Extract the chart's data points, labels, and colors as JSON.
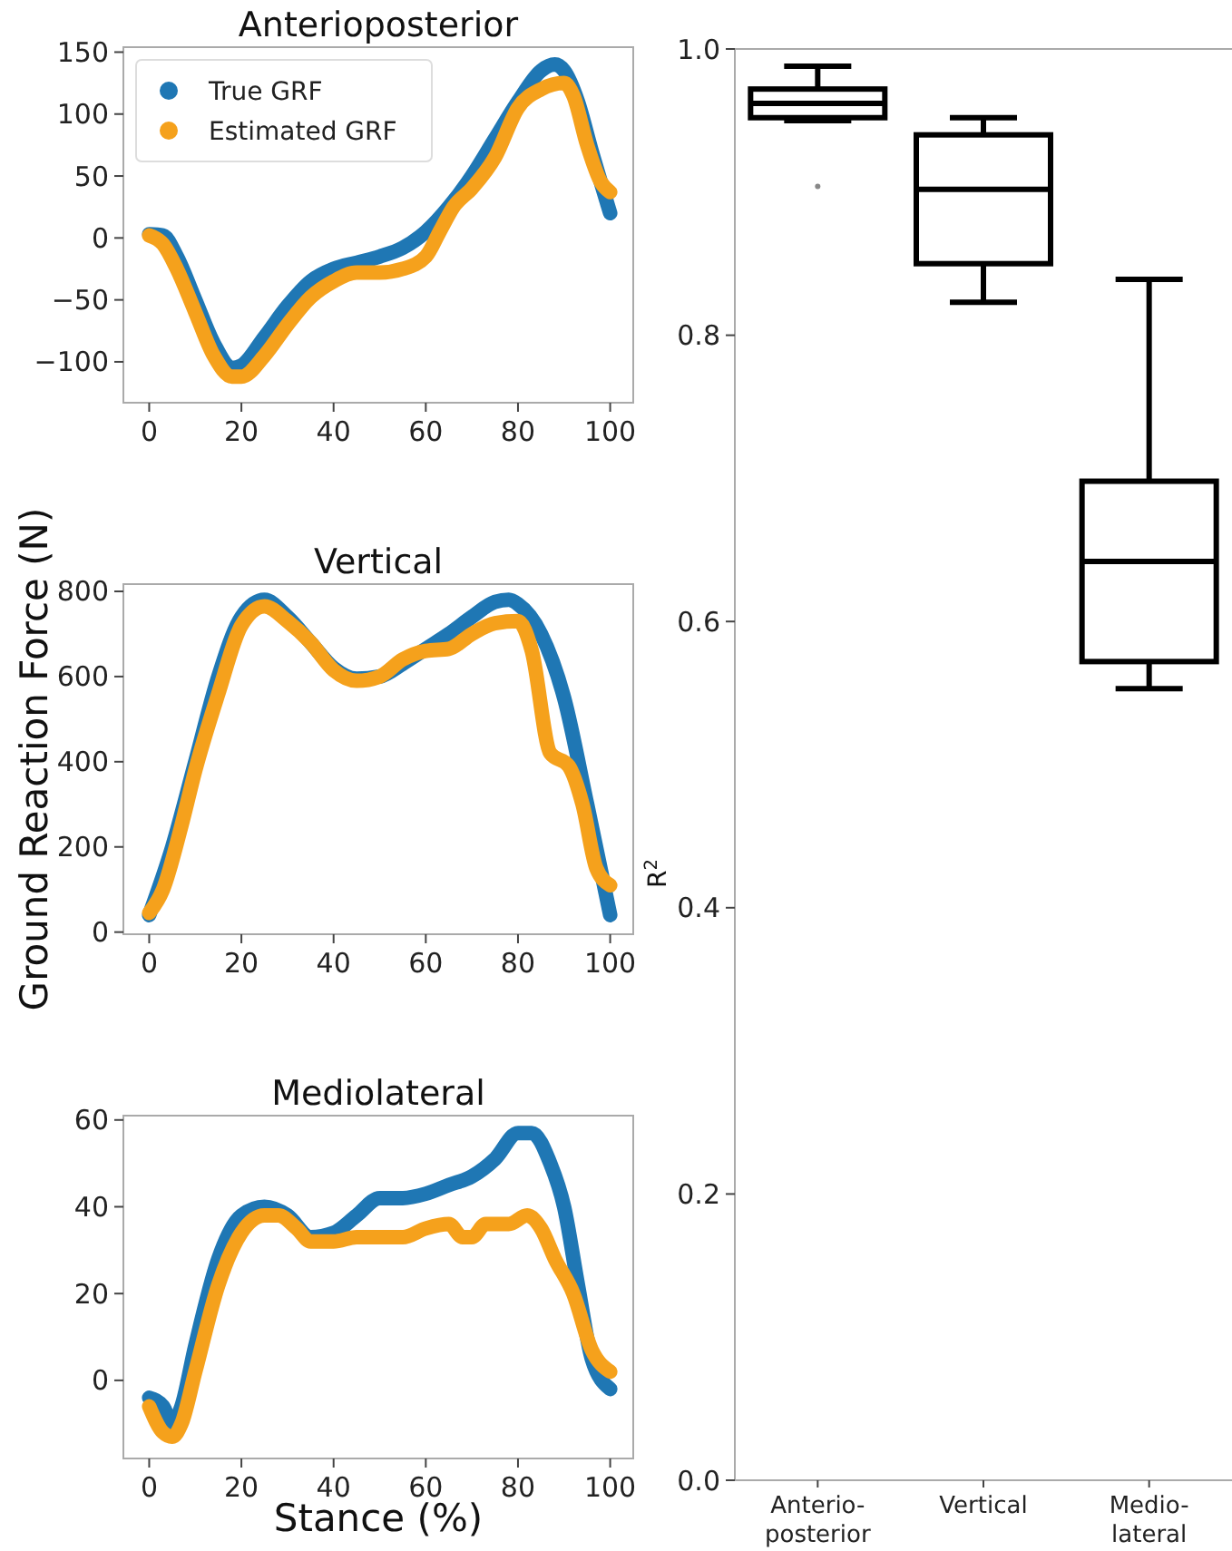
{
  "chart_data": [
    {
      "type": "line",
      "title": "Anterioposterior",
      "xlim": [
        -5.6,
        105
      ],
      "xticks": [
        0,
        20,
        40,
        60,
        80,
        100
      ],
      "ylim": [
        -133,
        154
      ],
      "yticks": [
        {
          "value": -100,
          "label": "−100"
        },
        {
          "value": -50,
          "label": "−50"
        },
        0,
        50,
        100,
        150
      ],
      "legend": "top left",
      "line_style": "solid",
      "series": [
        {
          "name": "True GRF",
          "color": "#1f77b4",
          "x": [
            0,
            3,
            6,
            10,
            14,
            18,
            20,
            25,
            30,
            35,
            40,
            45,
            50,
            55,
            60,
            65,
            70,
            75,
            80,
            85,
            88,
            90,
            93,
            96,
            100
          ],
          "values": [
            3,
            2,
            -15,
            -50,
            -85,
            -105,
            -103,
            -80,
            -55,
            -35,
            -25,
            -20,
            -15,
            -8,
            5,
            25,
            50,
            80,
            110,
            135,
            140,
            135,
            110,
            70,
            20
          ]
        },
        {
          "name": "Estimated GRF",
          "color": "#f5a11c",
          "x": [
            0,
            3,
            6,
            10,
            14,
            18,
            20,
            25,
            30,
            35,
            40,
            45,
            50,
            55,
            60,
            63,
            66,
            70,
            75,
            80,
            85,
            90,
            92,
            95,
            98,
            100
          ],
          "values": [
            2,
            -5,
            -25,
            -60,
            -95,
            -112,
            -112,
            -95,
            -70,
            -48,
            -35,
            -28,
            -28,
            -25,
            -15,
            5,
            25,
            40,
            65,
            105,
            120,
            125,
            115,
            75,
            45,
            37
          ]
        }
      ]
    },
    {
      "type": "line",
      "title": "Vertical",
      "ylabel": "Ground Reaction Force (N)",
      "xlim": [
        -5.6,
        105
      ],
      "xticks": [
        0,
        20,
        40,
        60,
        80,
        100
      ],
      "ylim": [
        -5,
        817
      ],
      "yticks": [
        0,
        200,
        400,
        600,
        800
      ],
      "line_style": "solid",
      "series": [
        {
          "color": "#1f77b4",
          "x": [
            0,
            5,
            10,
            15,
            20,
            25,
            30,
            35,
            40,
            45,
            50,
            55,
            60,
            65,
            70,
            75,
            78,
            80,
            85,
            90,
            95,
            100
          ],
          "values": [
            40,
            200,
            400,
            600,
            740,
            780,
            740,
            680,
            620,
            595,
            600,
            630,
            665,
            700,
            740,
            775,
            780,
            770,
            700,
            550,
            300,
            40
          ]
        },
        {
          "color": "#f5a11c",
          "x": [
            0,
            3,
            7,
            10,
            15,
            20,
            25,
            30,
            35,
            40,
            45,
            50,
            55,
            60,
            65,
            70,
            75,
            80,
            83,
            87,
            91,
            94,
            97,
            100
          ],
          "values": [
            45,
            100,
            250,
            380,
            560,
            720,
            765,
            730,
            680,
            615,
            590,
            600,
            640,
            660,
            665,
            700,
            725,
            730,
            660,
            420,
            390,
            300,
            150,
            110
          ]
        }
      ]
    },
    {
      "type": "line",
      "title": "Mediolateral",
      "xlabel": "Stance (%)",
      "xlim": [
        -5.6,
        105
      ],
      "xticks": [
        0,
        20,
        40,
        60,
        80,
        100
      ],
      "ylim": [
        -18,
        61
      ],
      "yticks": [
        0,
        20,
        40,
        60
      ],
      "line_style": "solid",
      "series": [
        {
          "color": "#1f77b4",
          "x": [
            0,
            3,
            5,
            7,
            10,
            15,
            20,
            25,
            30,
            35,
            40,
            45,
            50,
            55,
            60,
            65,
            70,
            75,
            80,
            83,
            87,
            90,
            93,
            96,
            100
          ],
          "values": [
            -4,
            -6,
            -10,
            -6,
            8,
            28,
            38,
            40,
            38,
            33,
            34,
            38,
            42,
            42,
            43,
            45,
            47,
            51,
            57,
            57,
            50,
            40,
            22,
            5,
            -2
          ]
        },
        {
          "color": "#f5a11c",
          "x": [
            0,
            3,
            5,
            7,
            10,
            15,
            20,
            25,
            28,
            32,
            35,
            40,
            45,
            50,
            55,
            60,
            65,
            68,
            70,
            73,
            78,
            82,
            85,
            88,
            92,
            96,
            100
          ],
          "values": [
            -6,
            -12,
            -13,
            -10,
            2,
            22,
            34,
            38,
            38,
            35,
            32,
            32,
            33,
            33,
            33,
            35,
            36,
            33,
            33,
            36,
            36,
            38,
            35,
            28,
            20,
            7,
            2
          ]
        }
      ]
    },
    {
      "type": "box",
      "ylabel": "R$^{2}$",
      "categories": [
        "Anterio-\nposterior",
        "Vertical",
        "Medio-\nlateral"
      ],
      "ylim": [
        0,
        1.0
      ],
      "yticks": [
        {
          "value": 0,
          "label": "0.0"
        },
        {
          "value": 0.2,
          "label": "0.2"
        },
        {
          "value": 0.4,
          "label": "0.4"
        },
        {
          "value": 0.6,
          "label": "0.6"
        },
        {
          "value": 0.8,
          "label": "0.8"
        },
        {
          "value": 1,
          "label": "1.0"
        }
      ],
      "boxes": [
        {
          "low": 0.95,
          "q1": 0.952,
          "median": 0.962,
          "q3": 0.972,
          "high": 0.988,
          "outliers": [
            0.904
          ]
        },
        {
          "low": 0.823,
          "q1": 0.85,
          "median": 0.902,
          "q3": 0.94,
          "high": 0.952
        },
        {
          "low": 0.553,
          "q1": 0.572,
          "median": 0.642,
          "q3": 0.698,
          "high": 0.839
        }
      ]
    }
  ]
}
